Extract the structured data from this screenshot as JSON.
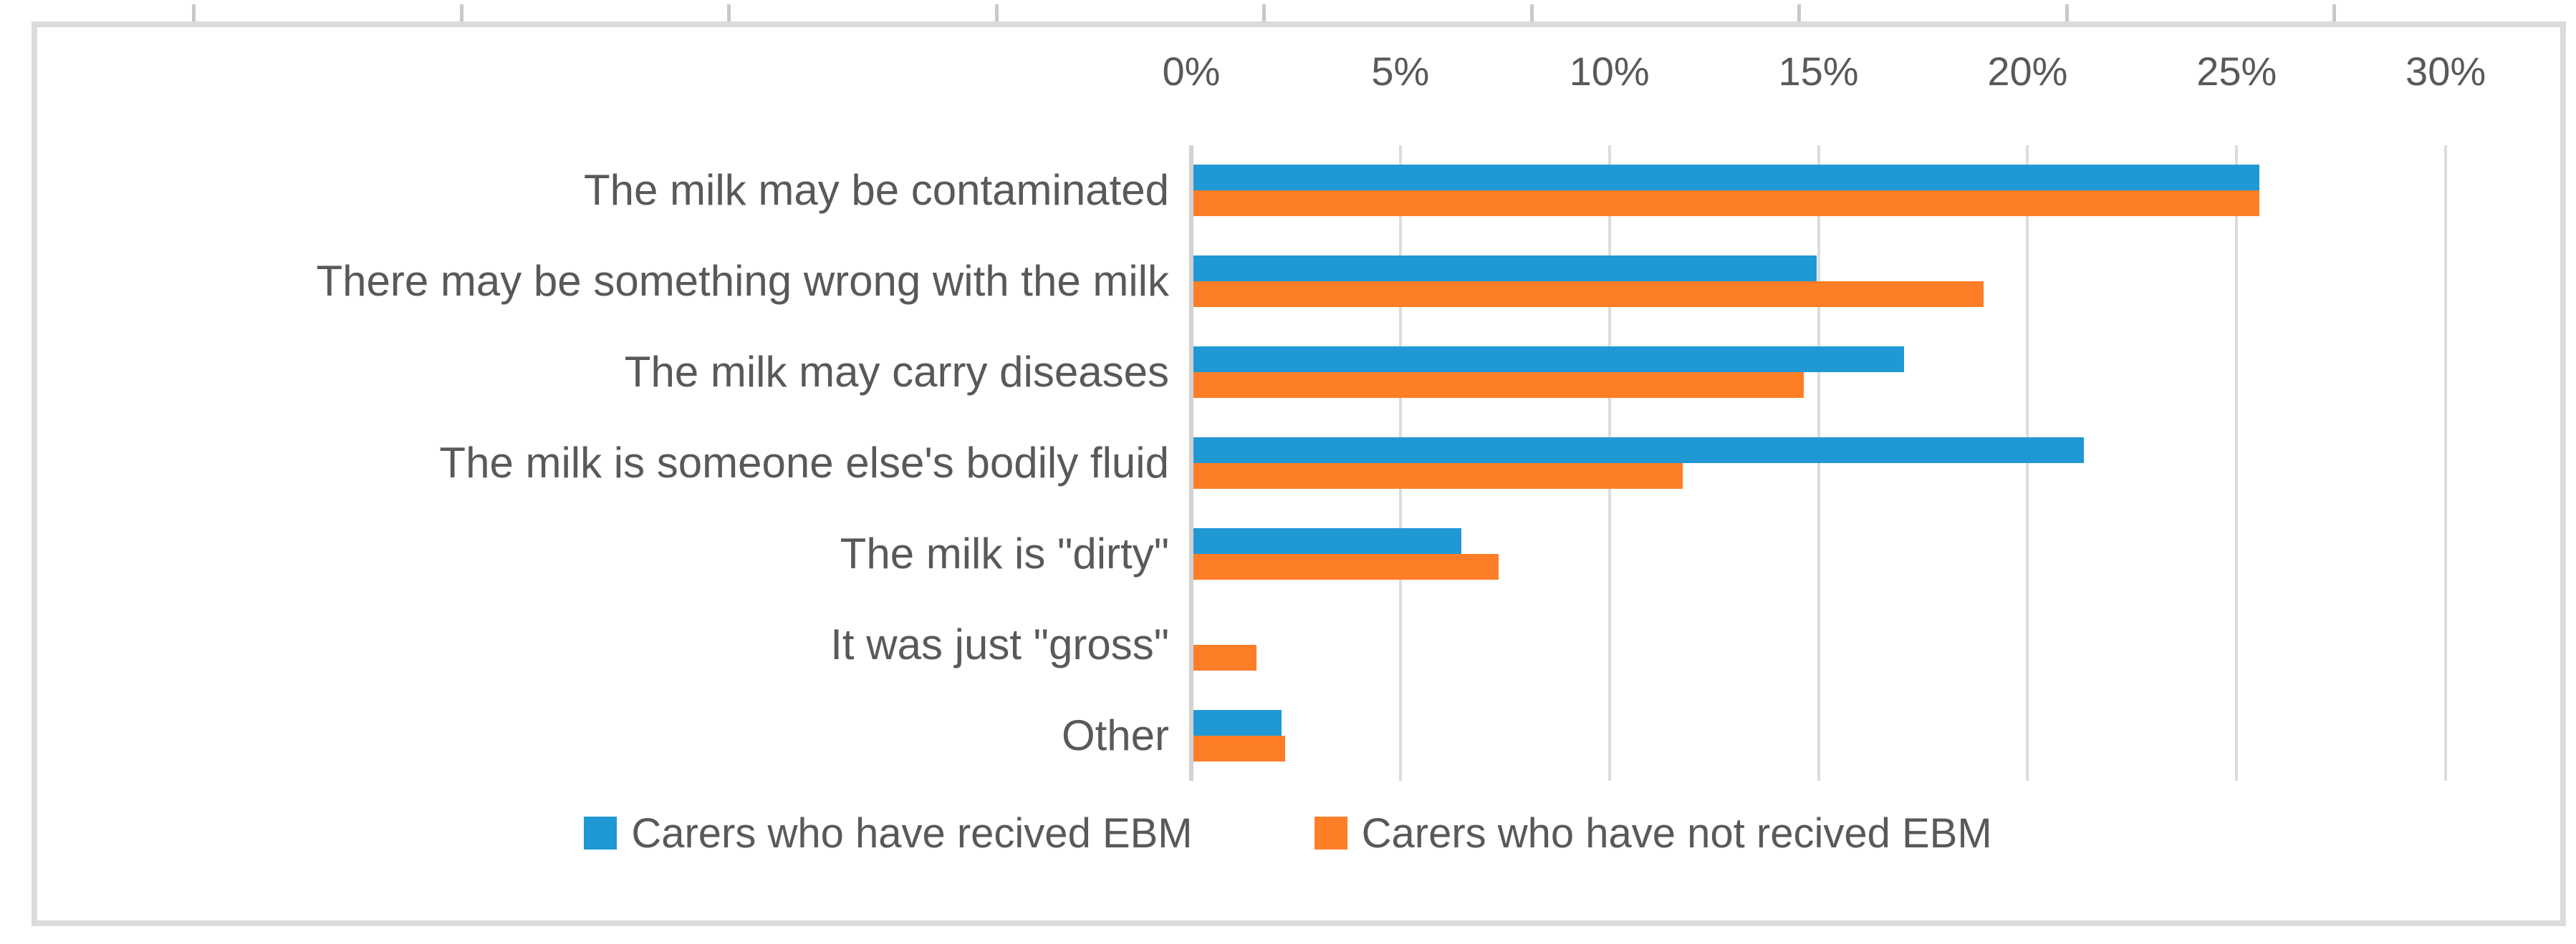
{
  "chart_data": {
    "type": "bar",
    "orientation": "horizontal",
    "title": "",
    "categories": [
      "The milk may be contaminated",
      "There may be something wrong with the milk",
      "The milk may carry diseases",
      "The milk is someone else's bodily fluid",
      "The milk is \"dirty\"",
      "It was just \"gross\"",
      "Other"
    ],
    "series": [
      {
        "name": "Carers who have recived EBM",
        "color": "#2098D4",
        "values": [
          25.5,
          14.9,
          17.0,
          21.3,
          6.4,
          0,
          2.1
        ]
      },
      {
        "name": "Carers who have not recived EBM",
        "color": "#FD7E27",
        "values": [
          25.5,
          18.9,
          14.6,
          11.7,
          7.3,
          1.5,
          2.2
        ]
      }
    ],
    "x_axis": {
      "position": "top",
      "min": 0,
      "max": 30,
      "step": 5,
      "unit": "%",
      "tick_labels": [
        "0%",
        "5%",
        "10%",
        "15%",
        "20%",
        "25%",
        "30%"
      ]
    },
    "grid": true,
    "legend_position": "bottom",
    "colors": {
      "text": "#595959",
      "gridline": "#DCDCDC",
      "axis_line": "#D2D2D2",
      "frame_border": "#DBDBDB",
      "background": "#FFFFFF"
    }
  }
}
